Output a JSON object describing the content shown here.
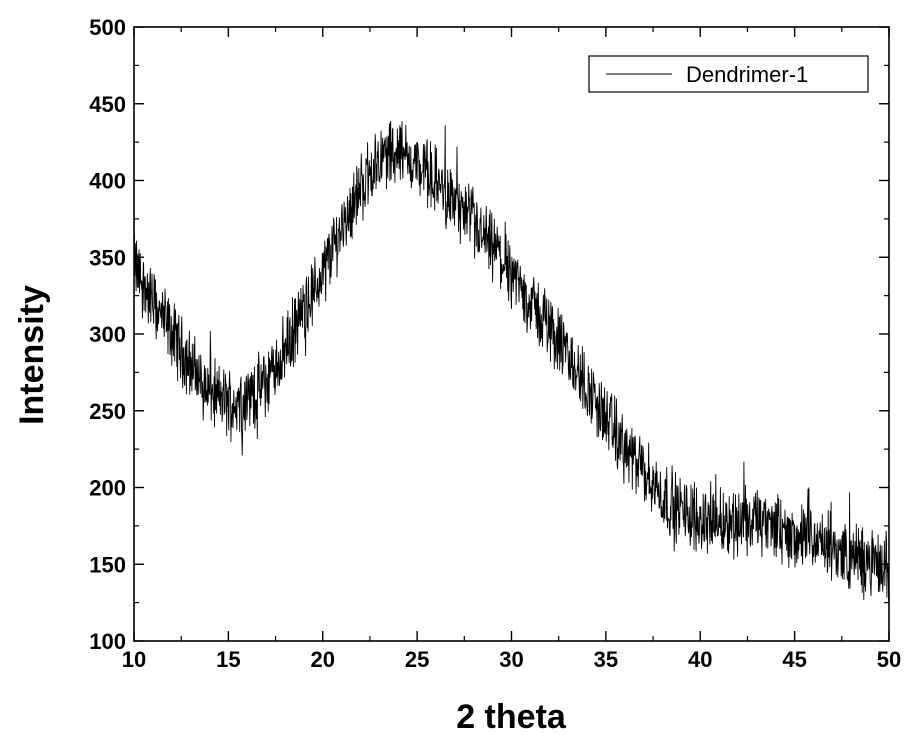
{
  "chart_data": {
    "type": "line",
    "title": "",
    "xlabel": "2 theta",
    "ylabel": "Intensity",
    "xlim": [
      10,
      50
    ],
    "ylim": [
      100,
      500
    ],
    "xticks": [
      10,
      15,
      20,
      25,
      30,
      35,
      40,
      45,
      50
    ],
    "yticks": [
      100,
      150,
      200,
      250,
      300,
      350,
      400,
      450,
      500
    ],
    "x_tick_labels": [
      "10",
      "15",
      "20",
      "25",
      "30",
      "35",
      "40",
      "45",
      "50"
    ],
    "y_tick_labels": [
      "100",
      "150",
      "200",
      "250",
      "300",
      "350",
      "400",
      "450",
      "500"
    ],
    "grid": false,
    "legend_position": "top-right",
    "line_color": "#000000",
    "series": [
      {
        "name": "Dendrimer-1",
        "x": [
          10,
          11,
          12,
          13,
          14,
          15,
          16,
          17,
          18,
          19,
          20,
          21,
          22,
          23,
          24,
          25,
          26,
          27,
          28,
          29,
          30,
          31,
          32,
          33,
          34,
          35,
          36,
          37,
          38,
          39,
          40,
          41,
          42,
          43,
          44,
          45,
          46,
          47,
          48,
          49,
          50
        ],
        "values": [
          345,
          320,
          300,
          280,
          262,
          255,
          258,
          268,
          290,
          315,
          340,
          370,
          395,
          415,
          420,
          410,
          400,
          385,
          370,
          355,
          340,
          320,
          305,
          285,
          265,
          245,
          225,
          210,
          195,
          185,
          180,
          178,
          178,
          178,
          173,
          168,
          165,
          160,
          155,
          150,
          148
        ]
      }
    ]
  }
}
